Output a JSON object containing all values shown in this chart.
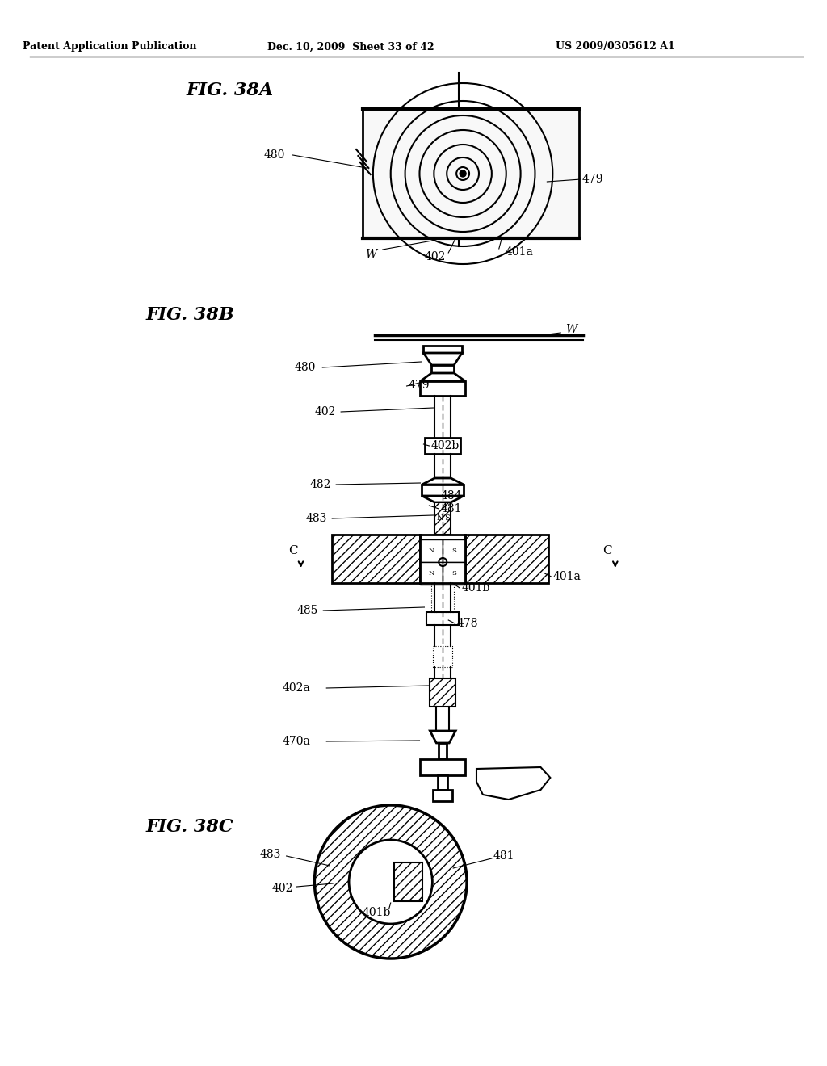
{
  "bg_color": "#ffffff",
  "header_left": "Patent Application Publication",
  "header_mid": "Dec. 10, 2009  Sheet 33 of 42",
  "header_right": "US 2009/0305612 A1",
  "fig38a_label": "FIG. 38A",
  "fig38b_label": "FIG. 38B",
  "fig38c_label": "FIG. 38C",
  "lc": "#000000"
}
